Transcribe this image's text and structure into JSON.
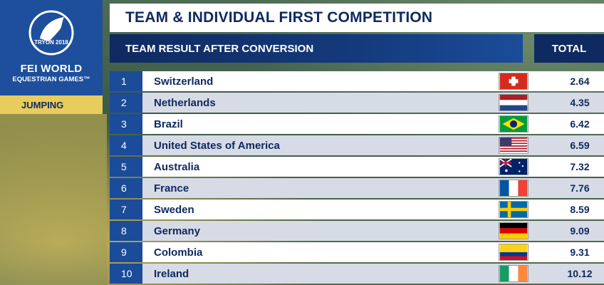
{
  "brand": {
    "logo_text": "TRYON 2018",
    "title": "FEI WORLD",
    "subtitle": "EQUESTRIAN GAMES™",
    "discipline": "JUMPING"
  },
  "header": {
    "title": "TEAM & INDIVIDUAL FIRST COMPETITION",
    "subtitle": "TEAM RESULT AFTER CONVERSION",
    "total_label": "TOTAL"
  },
  "results": [
    {
      "rank": "1",
      "country": "Switzerland",
      "flag": "switzerland-flag",
      "total": "2.64"
    },
    {
      "rank": "2",
      "country": "Netherlands",
      "flag": "netherlands-flag",
      "total": "4.35"
    },
    {
      "rank": "3",
      "country": "Brazil",
      "flag": "brazil-flag",
      "total": "6.42"
    },
    {
      "rank": "4",
      "country": "United States of America",
      "flag": "usa-flag",
      "total": "6.59"
    },
    {
      "rank": "5",
      "country": "Australia",
      "flag": "australia-flag",
      "total": "7.32"
    },
    {
      "rank": "6",
      "country": "France",
      "flag": "france-flag",
      "total": "7.76"
    },
    {
      "rank": "7",
      "country": "Sweden",
      "flag": "sweden-flag",
      "total": "8.59"
    },
    {
      "rank": "8",
      "country": "Germany",
      "flag": "germany-flag",
      "total": "9.09"
    },
    {
      "rank": "9",
      "country": "Colombia",
      "flag": "colombia-flag",
      "total": "9.31"
    },
    {
      "rank": "10",
      "country": "Ireland",
      "flag": "ireland-flag",
      "total": "10.12"
    }
  ],
  "colors": {
    "navy": "#0f2a60",
    "blue": "#1b4c99",
    "gold": "#e8cc5c",
    "row_alt": "#d6dbe6"
  }
}
